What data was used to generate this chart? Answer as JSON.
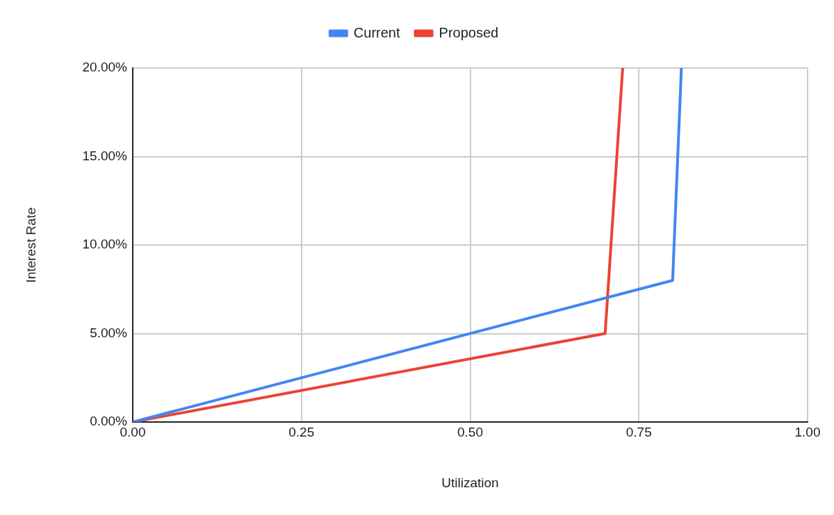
{
  "chart_data": {
    "type": "line",
    "xlabel": "Utilization",
    "ylabel": "Interest Rate",
    "series": [
      {
        "name": "Current",
        "color": "#4285f4",
        "x": [
          0,
          0.8,
          0.813
        ],
        "values": [
          0,
          8,
          20
        ]
      },
      {
        "name": "Proposed",
        "color": "#ea4335",
        "x": [
          0,
          0.7,
          0.726
        ],
        "values": [
          0,
          5,
          20
        ]
      }
    ],
    "xlim": [
      0,
      1
    ],
    "xticks": [
      {
        "value": 0,
        "label": "0.00"
      },
      {
        "value": 0.25,
        "label": "0.25"
      },
      {
        "value": 0.5,
        "label": "0.50"
      },
      {
        "value": 0.75,
        "label": "0.75"
      },
      {
        "value": 1,
        "label": "1.00"
      }
    ],
    "ylim": [
      0,
      20
    ],
    "yticks": [
      {
        "value": 0,
        "label": "0.00%"
      },
      {
        "value": 5,
        "label": "5.00%"
      },
      {
        "value": 10,
        "label": "10.00%"
      },
      {
        "value": 15,
        "label": "15.00%"
      },
      {
        "value": 20,
        "label": "20.00%"
      }
    ],
    "grid": true,
    "legend": "top",
    "marker": "none",
    "line_style": "solid"
  }
}
